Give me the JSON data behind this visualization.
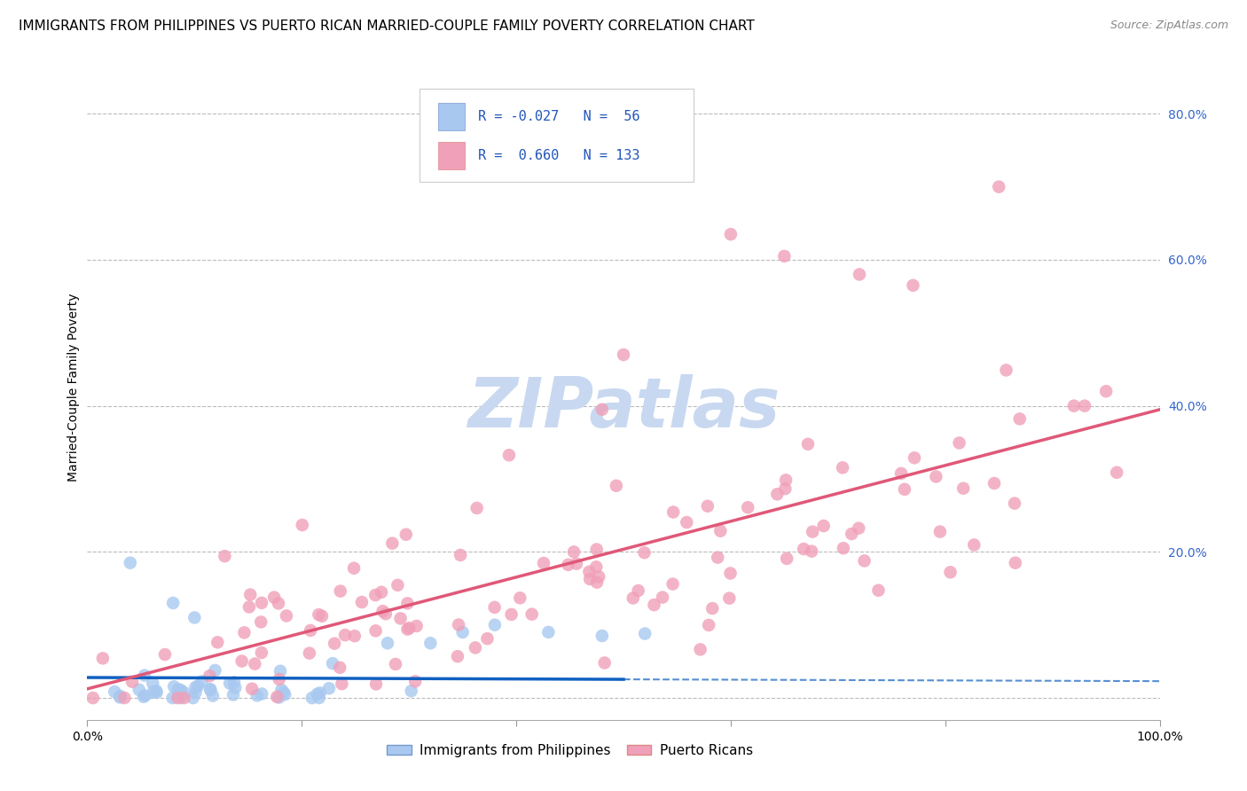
{
  "title": "IMMIGRANTS FROM PHILIPPINES VS PUERTO RICAN MARRIED-COUPLE FAMILY POVERTY CORRELATION CHART",
  "source": "Source: ZipAtlas.com",
  "ylabel": "Married-Couple Family Poverty",
  "xmin": 0.0,
  "xmax": 1.0,
  "ymin": -0.03,
  "ymax": 0.88,
  "xticks": [
    0.0,
    0.2,
    0.4,
    0.6,
    0.8,
    1.0
  ],
  "xtick_labels": [
    "0.0%",
    "",
    "",
    "",
    "",
    "100.0%"
  ],
  "yticks": [
    0.0,
    0.2,
    0.4,
    0.6,
    0.8
  ],
  "ytick_labels": [
    "",
    "20.0%",
    "40.0%",
    "60.0%",
    "80.0%"
  ],
  "blue_R": "-0.027",
  "blue_N": "56",
  "pink_R": "0.660",
  "pink_N": "133",
  "blue_color": "#A8C8F0",
  "pink_color": "#F0A0B8",
  "blue_line_color": "#1060C0",
  "pink_line_color": "#E05878",
  "blue_label": "Immigrants from Philippines",
  "pink_label": "Puerto Ricans",
  "watermark": "ZIPatlas",
  "watermark_color": "#C8D8F0",
  "legend_R_color": "#2255BB",
  "title_fontsize": 11,
  "source_fontsize": 9,
  "axis_label_fontsize": 10,
  "tick_fontsize": 10,
  "ytick_right_color": "#3366CC",
  "background_color": "#FFFFFF",
  "grid_color": "#BBBBBB",
  "seed": 42
}
